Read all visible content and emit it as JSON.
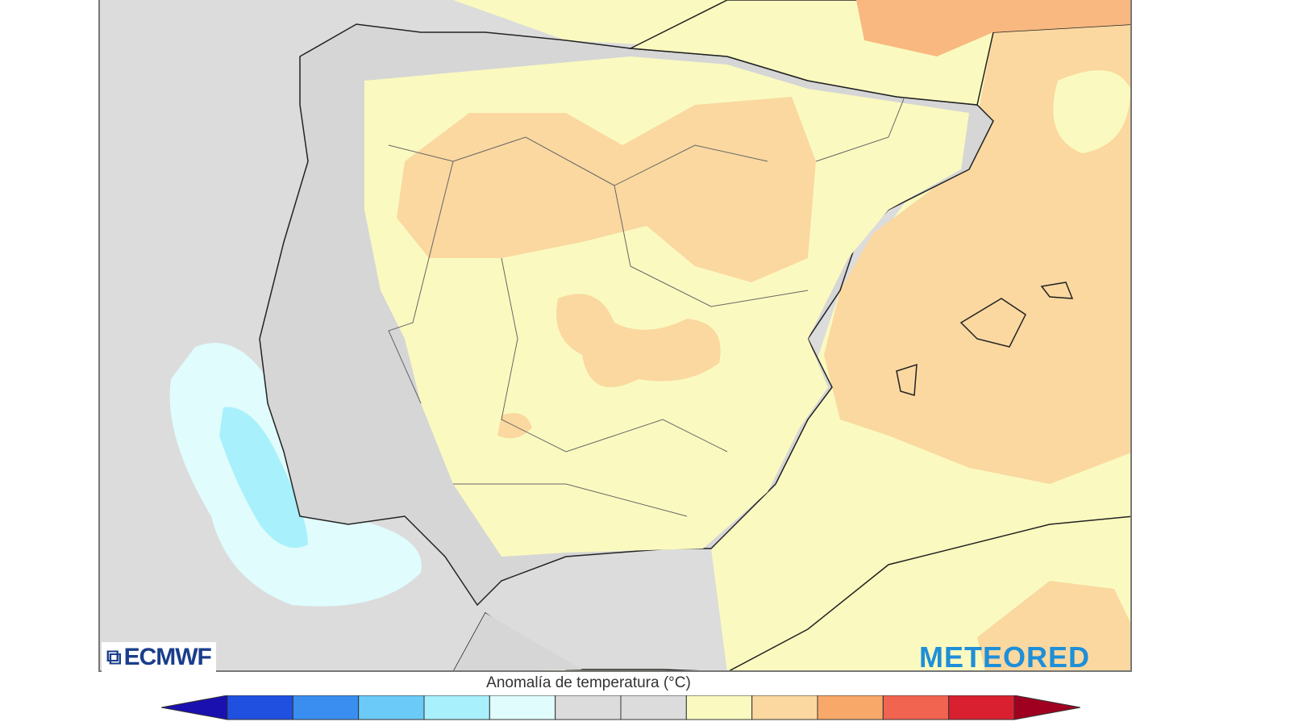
{
  "map": {
    "logos": {
      "left": "ECMWF",
      "right": "METEORED"
    },
    "colors": {
      "sea": "#dcdcdc",
      "land_neutral": "#d4d4d4",
      "border": "#222222"
    }
  },
  "legend": {
    "title": "Anomalía de temperatura (°C)",
    "colors": [
      "#1a10b0",
      "#2050e0",
      "#3a8ef0",
      "#6ccaf8",
      "#a8f0fc",
      "#e0fcfc",
      "#dcdcdc",
      "#dcdcdc",
      "#fafac0",
      "#fad8a0",
      "#f8a868",
      "#f06450",
      "#d82030",
      "#a00020"
    ]
  }
}
